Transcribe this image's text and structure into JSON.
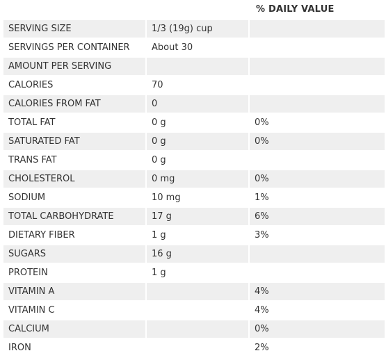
{
  "header": {
    "daily_value_label": "% DAILY VALUE"
  },
  "rows": [
    {
      "label": "SERVING SIZE",
      "amount": "1/3 (19g) cup",
      "dv": ""
    },
    {
      "label": "SERVINGS PER CONTAINER",
      "amount": "About 30",
      "dv": ""
    },
    {
      "label": "AMOUNT PER SERVING",
      "amount": "",
      "dv": ""
    },
    {
      "label": "CALORIES",
      "amount": "70",
      "dv": ""
    },
    {
      "label": "CALORIES FROM FAT",
      "amount": "0",
      "dv": ""
    },
    {
      "label": "TOTAL FAT",
      "amount": "0 g",
      "dv": "0%"
    },
    {
      "label": "SATURATED FAT",
      "amount": "0 g",
      "dv": "0%"
    },
    {
      "label": "TRANS FAT",
      "amount": "0 g",
      "dv": ""
    },
    {
      "label": "CHOLESTEROL",
      "amount": "0 mg",
      "dv": "0%"
    },
    {
      "label": "SODIUM",
      "amount": "10 mg",
      "dv": "1%"
    },
    {
      "label": "TOTAL CARBOHYDRATE",
      "amount": "17 g",
      "dv": "6%"
    },
    {
      "label": "DIETARY FIBER",
      "amount": "1 g",
      "dv": "3%"
    },
    {
      "label": "SUGARS",
      "amount": "16 g",
      "dv": ""
    },
    {
      "label": "PROTEIN",
      "amount": "1 g",
      "dv": ""
    },
    {
      "label": "VITAMIN A",
      "amount": "",
      "dv": "4%"
    },
    {
      "label": "VITAMIN C",
      "amount": "",
      "dv": "4%"
    },
    {
      "label": "CALCIUM",
      "amount": "",
      "dv": "0%"
    },
    {
      "label": "IRON",
      "amount": "",
      "dv": "2%"
    }
  ],
  "colors": {
    "row_shade": "#efefef",
    "text": "#333333"
  }
}
